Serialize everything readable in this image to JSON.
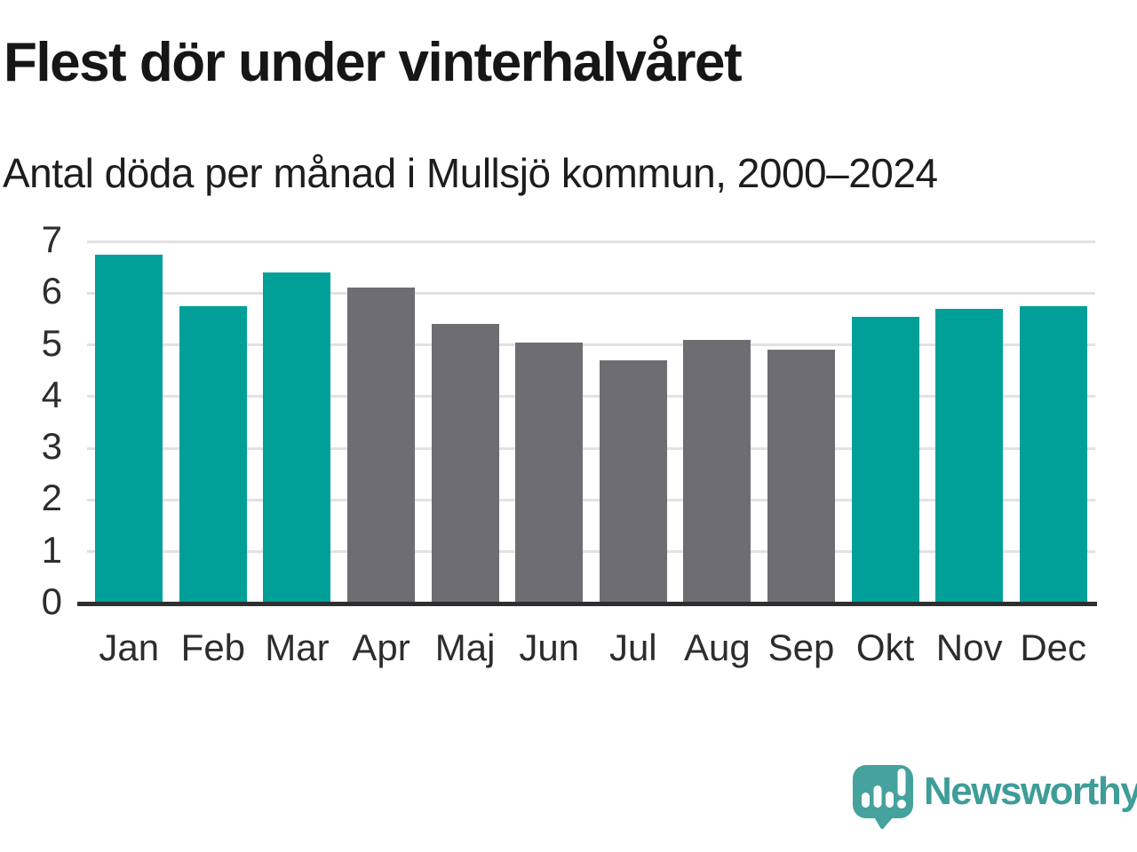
{
  "chart_data": {
    "type": "bar",
    "title": "Flest dör under vinterhalvåret",
    "subtitle": "Antal döda per månad i Mullsjö kommun, 2000–2024",
    "categories": [
      "Jan",
      "Feb",
      "Mar",
      "Apr",
      "Maj",
      "Jun",
      "Jul",
      "Aug",
      "Sep",
      "Okt",
      "Nov",
      "Dec"
    ],
    "values": [
      6.75,
      5.75,
      6.4,
      6.1,
      5.4,
      5.05,
      4.7,
      5.1,
      4.9,
      5.55,
      5.7,
      5.75
    ],
    "bar_palette": [
      "teal",
      "teal",
      "teal",
      "gray",
      "gray",
      "gray",
      "gray",
      "gray",
      "gray",
      "teal",
      "teal",
      "teal"
    ],
    "xlabel": "",
    "ylabel": "",
    "ylim": [
      0,
      7
    ],
    "yticks": [
      0,
      1,
      2,
      3,
      4,
      5,
      6,
      7
    ],
    "grid": "horizontal",
    "legend": "none",
    "colors": {
      "teal": "#00a099",
      "gray": "#6e6e72",
      "grid": "#e2e2e2",
      "axis": "#2d2f31",
      "label": "#2d2d2d"
    }
  },
  "footer": {
    "brand": "Newsworthy",
    "logo_color": "#45a29c",
    "wordmark_color": "#3e9d98"
  }
}
